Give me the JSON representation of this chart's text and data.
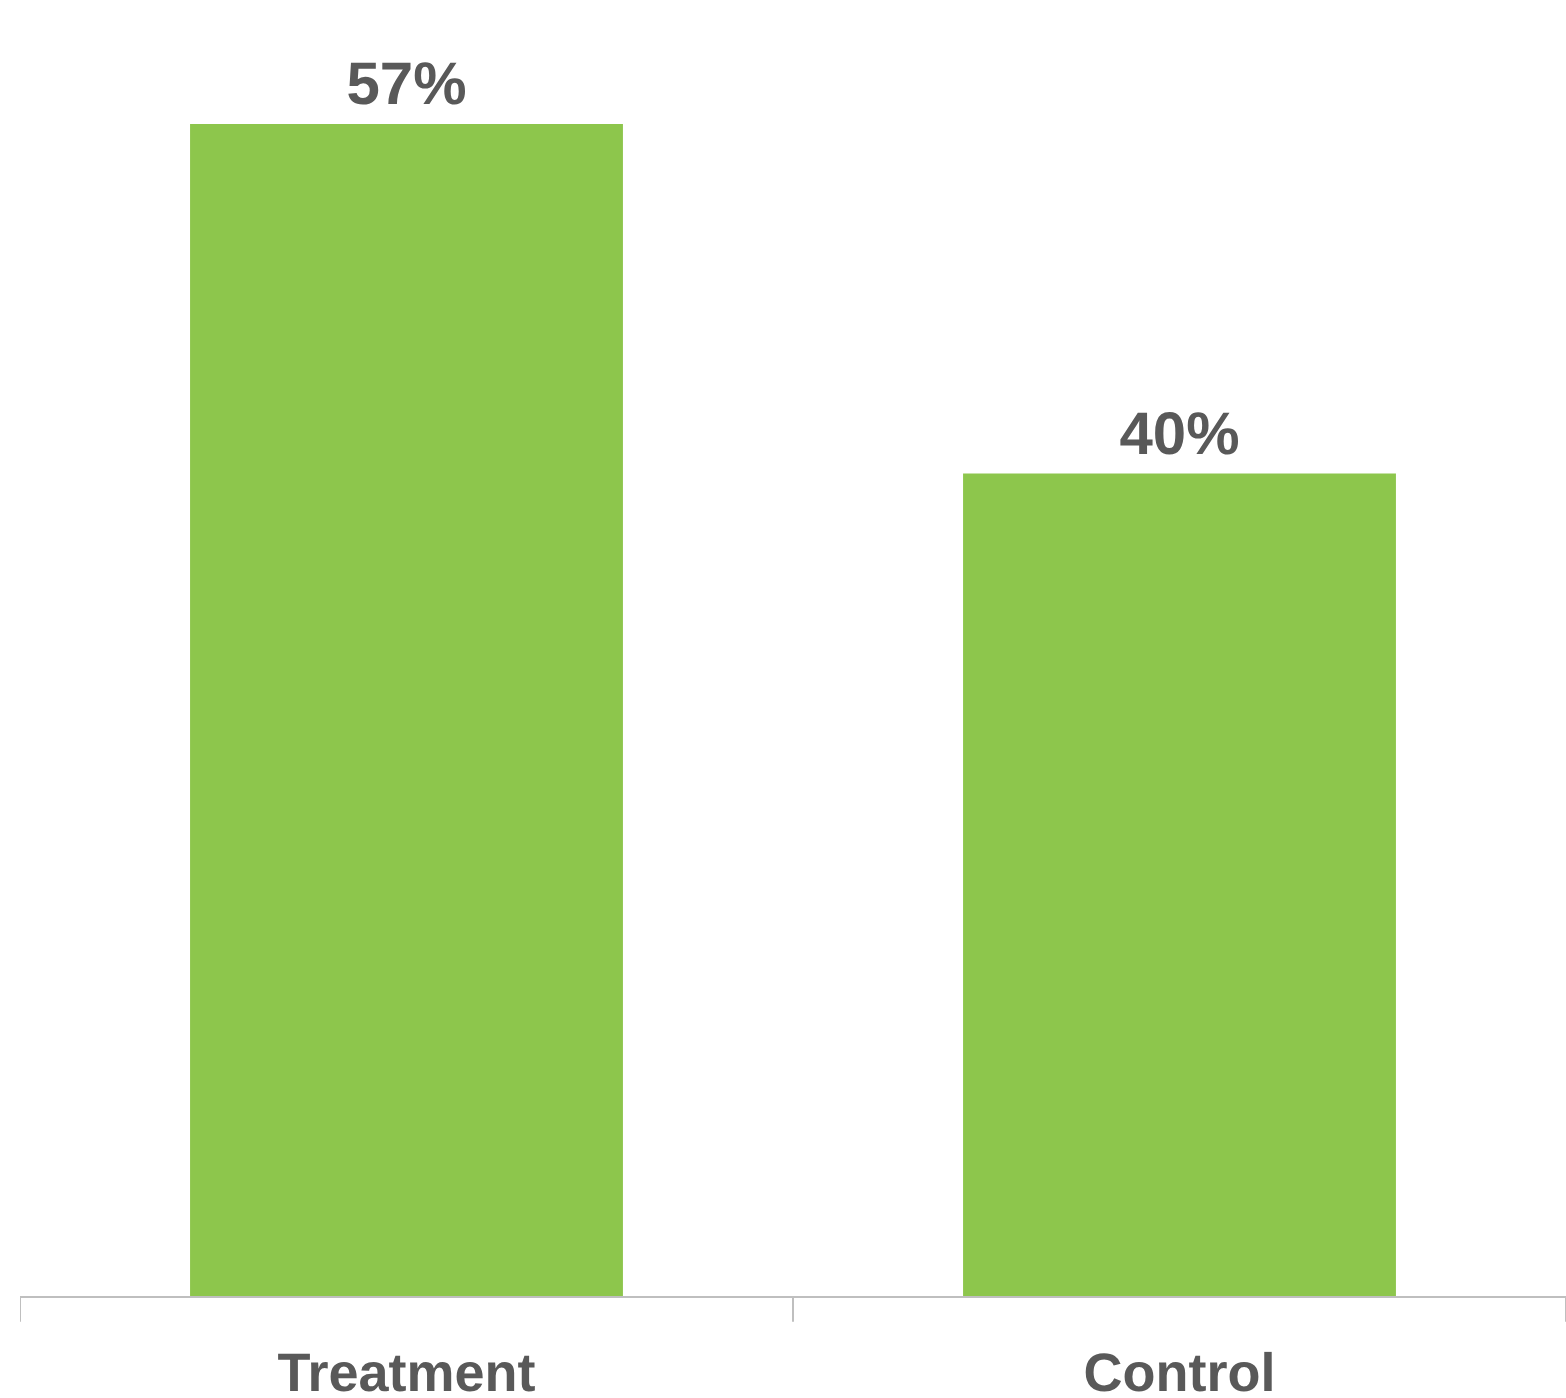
{
  "chart_data": {
    "type": "bar",
    "categories": [
      "Treatment",
      "Control"
    ],
    "series": [
      {
        "color": "#8dc64c",
        "values": [
          57,
          40
        ],
        "value_labels": [
          "57%",
          "40%"
        ]
      }
    ]
  }
}
